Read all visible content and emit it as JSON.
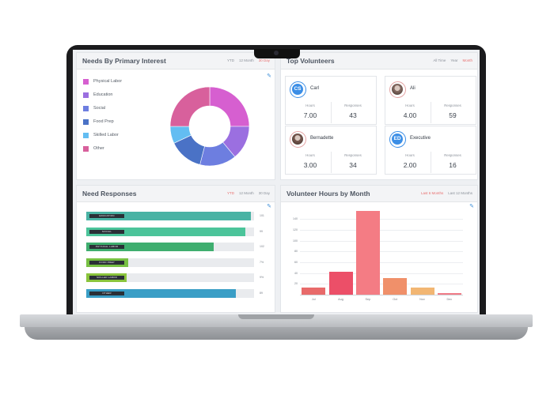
{
  "needs_by_interest": {
    "title": "Needs By Primary Interest",
    "filters": [
      "YTD",
      "12 Month",
      "30 Day"
    ],
    "active_filter": "30 Day",
    "legend": [
      {
        "label": "Physical Labor",
        "color": "#d65fd0"
      },
      {
        "label": "Education",
        "color": "#9b6fe0"
      },
      {
        "label": "Social",
        "color": "#6d7ee0"
      },
      {
        "label": "Food Prep",
        "color": "#4a72c6"
      },
      {
        "label": "Skilled Labor",
        "color": "#63bdf2"
      },
      {
        "label": "Other",
        "color": "#d8609c"
      }
    ],
    "donut_shares": [
      0.25,
      0.14,
      0.15,
      0.14,
      0.07,
      0.25
    ]
  },
  "top_volunteers": {
    "title": "Top Volunteers",
    "filters": [
      "All Time",
      "Year",
      "Month"
    ],
    "active_filter": "Month",
    "stat_labels": {
      "hours": "Hours",
      "responses": "Responses"
    },
    "volunteers": [
      {
        "initials": "CS",
        "name": "Carl",
        "hours": "7.00",
        "responses": "43",
        "avatar": "initials",
        "color": "#3b8ee6"
      },
      {
        "initials": "",
        "name": "Ali",
        "hours": "4.00",
        "responses": "59",
        "avatar": "photo",
        "color": "#8a6f66"
      },
      {
        "initials": "",
        "name": "Bernadette",
        "hours": "3.00",
        "responses": "34",
        "avatar": "photo",
        "color": "#7a5a50"
      },
      {
        "initials": "ED",
        "name": "Executive",
        "hours": "2.00",
        "responses": "16",
        "avatar": "initials",
        "color": "#3b8ee6"
      }
    ]
  },
  "need_responses": {
    "title": "Need Responses",
    "filters": [
      "YTD",
      "12 Month",
      "30 Day"
    ],
    "active_filter": "YTD",
    "rows": [
      {
        "label": "EDUCATION",
        "value": "101",
        "pct": 0.98,
        "color": "#49b3a4"
      },
      {
        "label": "SOCIAL",
        "value": "99",
        "pct": 0.95,
        "color": "#4bc49a"
      },
      {
        "label": "PHYSICAL LABOR",
        "value": "102",
        "pct": 0.76,
        "color": "#3fae6f"
      },
      {
        "label": "FOOD PREP",
        "value": "7%",
        "pct": 0.25,
        "color": "#77c043"
      },
      {
        "label": "SKILLED LABOR",
        "value": "9%",
        "pct": 0.24,
        "color": "#8ac43c"
      },
      {
        "label": "OTHER",
        "value": "89",
        "pct": 0.89,
        "color": "#3a9ec6"
      }
    ]
  },
  "volunteer_hours": {
    "title": "Volunteer Hours by Month",
    "filters": [
      "Last 6 Months",
      "Last 12 Months"
    ],
    "active_filter": "Last 6 Months"
  },
  "chart_data": {
    "type": "bar",
    "title": "Volunteer Hours by Month",
    "categories": [
      "Jul",
      "Aug",
      "Sep",
      "Oct",
      "Nov",
      "Dec"
    ],
    "values": [
      13,
      42,
      155,
      30,
      13,
      3
    ],
    "colors": [
      "#e86a6a",
      "#ec4f68",
      "#f47c84",
      "#f0906a",
      "#f2b673",
      "#f07c88"
    ],
    "y_ticks": [
      20,
      40,
      60,
      80,
      100,
      120,
      140
    ],
    "ylim": [
      0,
      165
    ],
    "grid": true
  }
}
